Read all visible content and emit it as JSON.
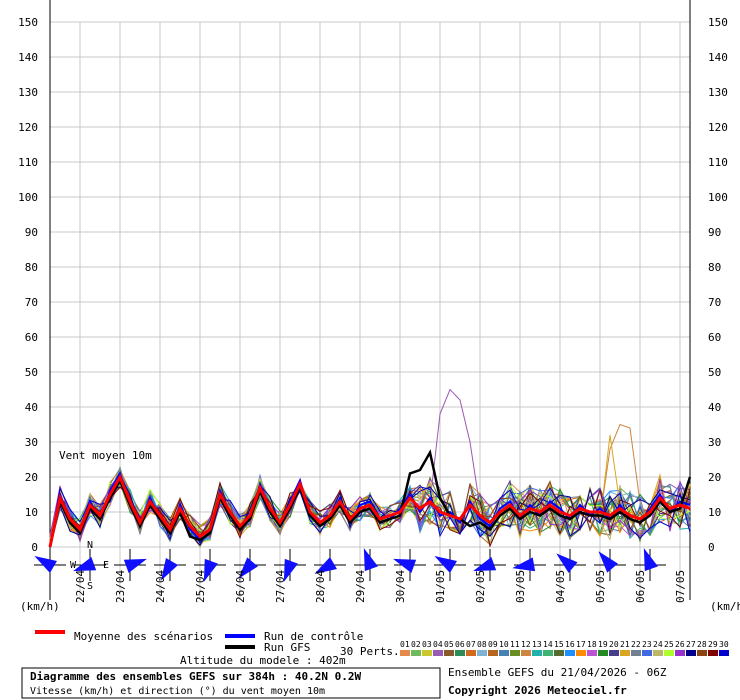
{
  "chart_data": {
    "type": "line",
    "title": "Diagramme des ensembles GEFS sur 384h : 40.2N 0.2W",
    "subtitle": "Vitesse (km/h) et direction (°) du vent moyen 10m",
    "series_label": "Vent moyen 10m",
    "ylabel_left": "(km/h)",
    "ylabel_right": "(km/h)",
    "ylim": [
      0,
      150
    ],
    "yticks": [
      "0",
      "10",
      "20",
      "30",
      "40",
      "50",
      "60",
      "70",
      "80",
      "90",
      "100",
      "110",
      "120",
      "130",
      "140",
      "150"
    ],
    "dates": [
      "22/04",
      "23/04",
      "24/04",
      "25/04",
      "26/04",
      "27/04",
      "28/04",
      "29/04",
      "30/04",
      "01/05",
      "02/05",
      "03/05",
      "04/05",
      "05/05",
      "06/05",
      "07/05"
    ],
    "x_hours": [
      0,
      6,
      12,
      18,
      24,
      30,
      36,
      42,
      48,
      54,
      60,
      66,
      72,
      78,
      84,
      90,
      96,
      102,
      108,
      114,
      120,
      126,
      132,
      138,
      144,
      150,
      156,
      162,
      168,
      174,
      180,
      186,
      192,
      198,
      204,
      210,
      216,
      222,
      228,
      234,
      240,
      246,
      252,
      258,
      264,
      270,
      276,
      282,
      288,
      294,
      300,
      306,
      312,
      318,
      324,
      330,
      336,
      342,
      348,
      354,
      360,
      366,
      372,
      378,
      384
    ],
    "mean": [
      0,
      14,
      8,
      5,
      12,
      9,
      15,
      20,
      13,
      7,
      13,
      9,
      5,
      11,
      6,
      3,
      5,
      15,
      10,
      6,
      9,
      17,
      11,
      7,
      12,
      18,
      10,
      7,
      9,
      13,
      8,
      11,
      12,
      8,
      9,
      10,
      14,
      11,
      13,
      10,
      9,
      8,
      12,
      9,
      7,
      10,
      12,
      9,
      11,
      10,
      12,
      10,
      9,
      11,
      10,
      10,
      9,
      11,
      9,
      8,
      10,
      14,
      11,
      12,
      11
    ],
    "control": [
      0,
      15,
      7,
      4,
      13,
      8,
      16,
      21,
      12,
      6,
      14,
      8,
      4,
      12,
      5,
      2,
      4,
      16,
      9,
      5,
      8,
      18,
      10,
      6,
      13,
      19,
      9,
      6,
      8,
      14,
      7,
      12,
      13,
      7,
      8,
      11,
      15,
      10,
      14,
      9,
      10,
      7,
      13,
      8,
      6,
      11,
      13,
      8,
      12,
      9,
      13,
      11,
      8,
      12,
      9,
      11,
      8,
      12,
      8,
      7,
      11,
      15,
      10,
      13,
      12
    ],
    "gfs": [
      0,
      13,
      7,
      4,
      11,
      8,
      14,
      19,
      12,
      6,
      12,
      8,
      4,
      10,
      3,
      2,
      4,
      14,
      9,
      5,
      8,
      16,
      10,
      6,
      11,
      17,
      9,
      6,
      8,
      12,
      7,
      10,
      11,
      7,
      8,
      9,
      21,
      22,
      27,
      14,
      9,
      8,
      6,
      7,
      5,
      9,
      11,
      8,
      10,
      9,
      11,
      9,
      8,
      10,
      9,
      9,
      8,
      10,
      8,
      7,
      9,
      13,
      10,
      11,
      20
    ],
    "max_gust_envelope_peak": 45,
    "perturbation_count": "30 Perts.",
    "perturbation_ids": [
      "01",
      "02",
      "03",
      "04",
      "05",
      "06",
      "07",
      "08",
      "09",
      "10",
      "11",
      "12",
      "13",
      "14",
      "15",
      "16",
      "17",
      "18",
      "19",
      "20",
      "21",
      "22",
      "23",
      "24",
      "25",
      "26",
      "27",
      "28",
      "29",
      "30"
    ],
    "perturbation_colors": [
      "#e4894a",
      "#6dbb5c",
      "#c9c92e",
      "#9b59b6",
      "#8b5a2b",
      "#2e8b57",
      "#d2691e",
      "#7fb3d5",
      "#b5651d",
      "#4682b4",
      "#6b8e23",
      "#cd853f",
      "#20b2aa",
      "#3cb371",
      "#556b2f",
      "#1e90ff",
      "#ff8c00",
      "#ba55d3",
      "#228b22",
      "#483d8b",
      "#daa520",
      "#708090",
      "#4169e1",
      "#bdb76b",
      "#adff2f",
      "#9932cc",
      "#00008b",
      "#8b4513",
      "#800000",
      "#0000cd"
    ],
    "wind_dirs_deg": [
      300,
      250,
      70,
      210,
      200,
      220,
      200,
      240,
      340,
      290,
      300,
      250,
      260,
      310,
      320,
      340
    ],
    "legend": {
      "mean": "Moyenne des scénarios",
      "control": "Run de contrôle",
      "gfs": "Run GFS"
    },
    "colors": {
      "mean": "#ff0000",
      "control": "#0000ff",
      "gfs": "#000000",
      "grid": "#c8c8c8",
      "arrow": "#1010ff"
    },
    "altitude": "Altitude du modele : 402m",
    "run_info": "Ensemble GEFS du 21/04/2026 - 06Z",
    "copyright": "Copyright 2026 Meteociel.fr",
    "compass": {
      "n": "N",
      "s": "S",
      "w": "W",
      "e": "E"
    }
  }
}
